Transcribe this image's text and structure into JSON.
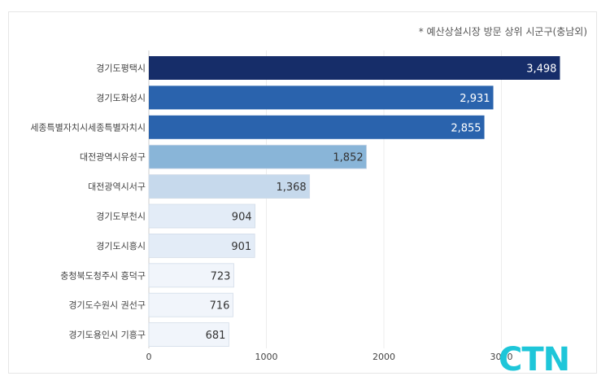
{
  "note": "* 예산상설시장 방문 상위 시군구(충남외)",
  "logo_text": "CTN",
  "colors": {
    "logo": "#1ec6d9",
    "bar_darkest": "#162d69",
    "bar_dark": "#2a63ad",
    "bar_mid": "#89b5d8",
    "bar_light": "#c6d9ec",
    "bar_lighter": "#e3ecf7",
    "bar_lightest": "#f1f5fb"
  },
  "chart_data": {
    "type": "bar",
    "orientation": "horizontal",
    "title": "",
    "xlabel": "",
    "ylabel": "",
    "categories": [
      "경기도평택시",
      "경기도화성시",
      "세종특별자치시세종특별자치시",
      "대전광역시유성구",
      "대전광역시서구",
      "경기도부천시",
      "경기도시흥시",
      "충청북도청주시 흥덕구",
      "경기도수원시 권선구",
      "경기도용인시 기흥구"
    ],
    "values": [
      3498,
      2931,
      2855,
      1852,
      1368,
      904,
      901,
      723,
      716,
      681
    ],
    "value_labels": [
      "3,498",
      "2,931",
      "2,855",
      "1,852",
      "1,368",
      "904",
      "901",
      "723",
      "716",
      "681"
    ],
    "xlim": [
      0,
      3600
    ],
    "ticks": [
      0,
      1000,
      2000,
      3000
    ],
    "tick_labels": [
      "0",
      "1000",
      "2000",
      "3000"
    ],
    "grid": true,
    "legend": "none"
  }
}
